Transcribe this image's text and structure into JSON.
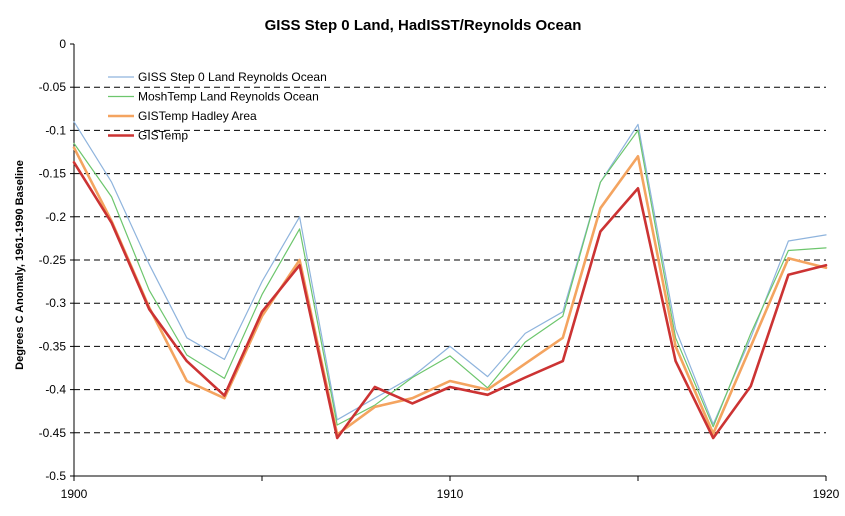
{
  "chart_data": {
    "type": "line",
    "title": "GISS Step 0 Land, HadISST/Reynolds Ocean",
    "xlabel": "",
    "ylabel": "Degrees C Anomaly, 1961-1990 Baseline",
    "xlim": [
      1900,
      1920
    ],
    "ylim": [
      -0.5,
      0
    ],
    "x_ticks": [
      1900,
      1905,
      1910,
      1915,
      1920
    ],
    "x_tick_labels": [
      "1900",
      "",
      "1910",
      "",
      "1920"
    ],
    "y_ticks": [
      "0",
      "-0.05",
      "-0.1",
      "-0.15",
      "-0.2",
      "-0.25",
      "-0.3",
      "-0.35",
      "-0.4",
      "-0.45",
      "-0.5"
    ],
    "grid": "horizontal dashed",
    "legend_position": "top-left",
    "x": [
      1900,
      1901,
      1902,
      1903,
      1904,
      1905,
      1906,
      1907,
      1908,
      1909,
      1910,
      1911,
      1912,
      1913,
      1914,
      1915,
      1916,
      1917,
      1918,
      1919,
      1920
    ],
    "series": [
      {
        "name": "GISS Step 0 Land Reynolds Ocean",
        "color": "#8fb4dd",
        "width": 1.2,
        "values": [
          -0.09,
          -0.16,
          -0.255,
          -0.34,
          -0.365,
          -0.275,
          -0.2,
          -0.435,
          -0.41,
          -0.385,
          -0.35,
          -0.385,
          -0.335,
          -0.31,
          -0.16,
          -0.093,
          -0.33,
          -0.44,
          -0.34,
          -0.228,
          -0.221
        ]
      },
      {
        "name": "MoshTemp Land Reynolds Ocean",
        "color": "#6dc66d",
        "width": 1.2,
        "values": [
          -0.115,
          -0.177,
          -0.285,
          -0.36,
          -0.387,
          -0.29,
          -0.214,
          -0.441,
          -0.418,
          -0.386,
          -0.361,
          -0.398,
          -0.345,
          -0.315,
          -0.16,
          -0.1,
          -0.34,
          -0.443,
          -0.335,
          -0.239,
          -0.236
        ]
      },
      {
        "name": "GISTemp Hadley Area",
        "color": "#f4a460",
        "width": 2.6,
        "values": [
          -0.12,
          -0.205,
          -0.305,
          -0.39,
          -0.41,
          -0.315,
          -0.25,
          -0.452,
          -0.42,
          -0.41,
          -0.39,
          -0.4,
          -0.37,
          -0.34,
          -0.19,
          -0.13,
          -0.35,
          -0.451,
          -0.35,
          -0.248,
          -0.259
        ]
      },
      {
        "name": "GISTemp",
        "color": "#cc3333",
        "width": 2.6,
        "values": [
          -0.137,
          -0.207,
          -0.307,
          -0.367,
          -0.407,
          -0.31,
          -0.256,
          -0.456,
          -0.397,
          -0.416,
          -0.397,
          -0.406,
          -0.386,
          -0.367,
          -0.217,
          -0.167,
          -0.367,
          -0.456,
          -0.396,
          -0.267,
          -0.256
        ]
      }
    ]
  }
}
